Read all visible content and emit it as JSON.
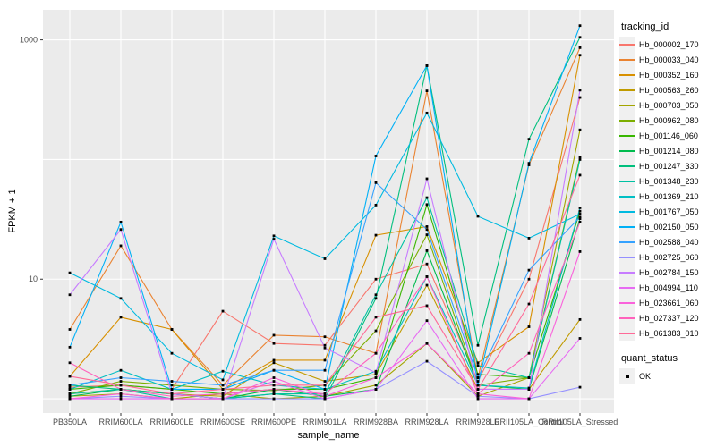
{
  "chart_data": {
    "type": "line",
    "title": "",
    "xlabel": "sample_name",
    "ylabel": "FPKM + 1",
    "y_scale": "log10",
    "background": "#EBEBEB",
    "gridline_color": "#FFFFFF",
    "point_color": "#000000",
    "tick_text_color": "#4D4D4D",
    "ylim_log10": [
      -0.119,
      3.251
    ],
    "major_gridlines": [
      1,
      10,
      100,
      1000
    ],
    "y_ticks": [
      {
        "label": "1000",
        "value": 1000
      },
      {
        "label": "10",
        "value": 10
      }
    ],
    "categories": [
      "PB350LA",
      "RRIM600LA",
      "RRIM600LE",
      "RRIM600SE",
      "RRIM600PE",
      "RRIM901LA",
      "RRIM928BA",
      "RRIM928LA",
      "RRIM928LE",
      "RRII105LA_Control",
      "RRII105LA_Stressed"
    ],
    "legend_title": "tracking_id",
    "legend_position": "right",
    "quant_legend": {
      "title": "quant_status",
      "label": "OK"
    },
    "series": [
      {
        "name": "Hb_000002_170",
        "color": "#F8766D",
        "values": [
          1.25,
          1.3,
          1.2,
          5.4,
          2.9,
          2.8,
          10.0,
          13.4,
          1.4,
          10.0,
          330
        ]
      },
      {
        "name": "Hb_000033_040",
        "color": "#EA8331",
        "values": [
          3.8,
          19.0,
          3.8,
          1.3,
          3.4,
          3.3,
          2.4,
          375,
          1.5,
          90,
          860
        ]
      },
      {
        "name": "Hb_000352_160",
        "color": "#D89000",
        "values": [
          1.54,
          4.8,
          3.8,
          1.2,
          2.1,
          2.1,
          23.3,
          27.5,
          2.0,
          4.0,
          745
        ]
      },
      {
        "name": "Hb_000563_260",
        "color": "#C09B00",
        "values": [
          1.1,
          1.2,
          1.1,
          1.05,
          2.0,
          1.4,
          1.6,
          8.9,
          1.2,
          1.2,
          4.6
        ]
      },
      {
        "name": "Hb_000703_050",
        "color": "#A3A500",
        "values": [
          1.05,
          1.1,
          1.0,
          1.1,
          1.0,
          1.05,
          1.3,
          2.9,
          1.05,
          1.5,
          177
        ]
      },
      {
        "name": "Hb_000962_080",
        "color": "#7CAE00",
        "values": [
          1.1,
          1.4,
          1.3,
          1.2,
          1.17,
          1.3,
          3.7,
          23.5,
          1.3,
          1.5,
          105
        ]
      },
      {
        "name": "Hb_001146_060",
        "color": "#39B600",
        "values": [
          1.2,
          1.3,
          1.2,
          1.1,
          1.2,
          1.2,
          1.5,
          42.0,
          1.6,
          1.5,
          37
        ]
      },
      {
        "name": "Hb_001214_080",
        "color": "#00BB4E",
        "values": [
          1.05,
          1.2,
          1.1,
          1.0,
          1.2,
          1.05,
          1.2,
          17.3,
          1.3,
          1.2,
          32
        ]
      },
      {
        "name": "Hb_001247_330",
        "color": "#00BF7D",
        "values": [
          1.3,
          1.2,
          1.1,
          1.0,
          1.1,
          1.0,
          6.9,
          609,
          2.8,
          148,
          1050
        ]
      },
      {
        "name": "Hb_001348_230",
        "color": "#00C1A3",
        "values": [
          1.1,
          1.2,
          1.0,
          1.0,
          1.1,
          1.1,
          7.4,
          48,
          1.9,
          1.5,
          100
        ]
      },
      {
        "name": "Hb_001369_210",
        "color": "#00BFC4",
        "values": [
          1.2,
          1.73,
          1.2,
          1.7,
          1.3,
          1.2,
          1.7,
          10.5,
          1.3,
          1.23,
          39.5
        ]
      },
      {
        "name": "Hb_001767_050",
        "color": "#00BAE0",
        "values": [
          11.3,
          6.9,
          2.4,
          1.44,
          23.0,
          14.8,
          41.6,
          245,
          33.5,
          22.0,
          35
        ]
      },
      {
        "name": "Hb_002150_050",
        "color": "#00B0F6",
        "values": [
          2.7,
          30.0,
          1.2,
          1.2,
          1.73,
          1.2,
          107,
          609,
          1.3,
          93,
          1315
        ]
      },
      {
        "name": "Hb_002588_040",
        "color": "#35A2FF",
        "values": [
          1.3,
          1.5,
          1.4,
          1.3,
          1.73,
          1.73,
          64,
          26,
          1.5,
          11.9,
          33
        ]
      },
      {
        "name": "Hb_002725_060",
        "color": "#9590FF",
        "values": [
          1.0,
          1.05,
          1.0,
          1.0,
          1.0,
          1.0,
          1.2,
          2.06,
          1.05,
          1.0,
          1.25
        ]
      },
      {
        "name": "Hb_002784_150",
        "color": "#C77CFF",
        "values": [
          7.4,
          26.0,
          1.1,
          1.0,
          21.6,
          2.66,
          1.65,
          69,
          1.2,
          1.2,
          380
        ]
      },
      {
        "name": "Hb_004994_110",
        "color": "#E76BF3",
        "values": [
          1.0,
          1.0,
          1.0,
          1.0,
          1.4,
          1.0,
          1.2,
          4.5,
          1.0,
          1.0,
          3.2
        ]
      },
      {
        "name": "Hb_023661_060",
        "color": "#FA62DB",
        "values": [
          1.0,
          1.1,
          1.0,
          1.0,
          1.5,
          1.05,
          1.5,
          2.9,
          1.1,
          1.0,
          17
        ]
      },
      {
        "name": "Hb_027337_120",
        "color": "#FF62BC",
        "values": [
          2.0,
          1.2,
          1.05,
          1.1,
          1.2,
          1.1,
          2.4,
          10.5,
          1.1,
          2.4,
          30
        ]
      },
      {
        "name": "Hb_061383_010",
        "color": "#FF6A98",
        "values": [
          1.54,
          1.3,
          1.1,
          1.2,
          1.3,
          1.3,
          4.8,
          6.0,
          1.2,
          6.2,
          74
        ]
      }
    ]
  }
}
